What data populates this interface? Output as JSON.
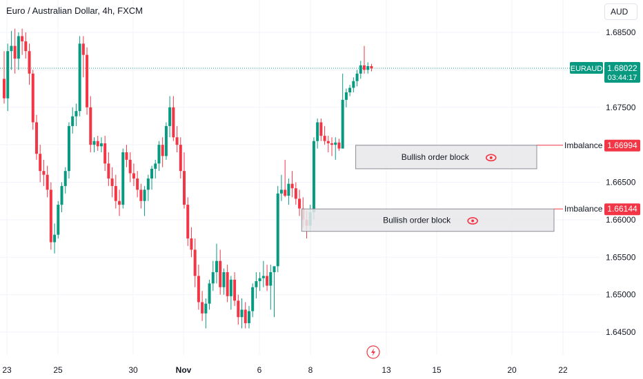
{
  "header": {
    "title": "Euro / Australian Dollar, 4h, FXCM"
  },
  "currency_button": "AUD",
  "price_tag": {
    "symbol": "EURAUD",
    "price": "1.68022",
    "countdown": "03:44:17",
    "color": "#089981"
  },
  "colors": {
    "up": "#089981",
    "down": "#f23645",
    "grid": "#f0f3fa",
    "text": "#131722",
    "box_fill": "#e8e8ea",
    "box_border": "#8a8d95",
    "price_line": "#089981",
    "imbalance_line": "#f23645"
  },
  "chart_data": {
    "type": "candlestick",
    "title": "Euro / Australian Dollar, 4h, FXCM",
    "y_axis": {
      "ticks": [
        "1.68500",
        "1.67500",
        "1.66500",
        "1.66000",
        "1.65500",
        "1.65000",
        "1.64500"
      ],
      "range": [
        1.6405,
        1.6885
      ]
    },
    "x_axis": {
      "labels": [
        "23",
        "25",
        "30",
        "Nov",
        "6",
        "8",
        "13",
        "15",
        "20",
        "22"
      ]
    },
    "last_price": 1.68022,
    "grid": true,
    "candles": [
      [
        1.6788,
        1.6825,
        1.6755,
        1.6762
      ],
      [
        1.6762,
        1.6835,
        1.6745,
        1.6825
      ],
      [
        1.6825,
        1.6852,
        1.68,
        1.6832
      ],
      [
        1.6832,
        1.6855,
        1.6795,
        1.6815
      ],
      [
        1.6815,
        1.685,
        1.68,
        1.6845
      ],
      [
        1.6845,
        1.6855,
        1.682,
        1.6838
      ],
      [
        1.6838,
        1.685,
        1.6815,
        1.6825
      ],
      [
        1.6825,
        1.6835,
        1.678,
        1.6795
      ],
      [
        1.6795,
        1.68,
        1.672,
        1.673
      ],
      [
        1.673,
        1.674,
        1.668,
        1.6688
      ],
      [
        1.6688,
        1.67,
        1.665,
        1.6665
      ],
      [
        1.6665,
        1.668,
        1.6645,
        1.666
      ],
      [
        1.666,
        1.6672,
        1.663,
        1.664
      ],
      [
        1.664,
        1.665,
        1.656,
        1.657
      ],
      [
        1.657,
        1.6595,
        1.6555,
        1.658
      ],
      [
        1.658,
        1.6625,
        1.6575,
        1.662
      ],
      [
        1.662,
        1.665,
        1.661,
        1.6645
      ],
      [
        1.6645,
        1.667,
        1.6635,
        1.6665
      ],
      [
        1.6665,
        1.673,
        1.6655,
        1.6725
      ],
      [
        1.6725,
        1.675,
        1.6715,
        1.6738
      ],
      [
        1.6738,
        1.6755,
        1.6725,
        1.6745
      ],
      [
        1.6745,
        1.6845,
        1.6738,
        1.6835
      ],
      [
        1.6835,
        1.6845,
        1.679,
        1.682
      ],
      [
        1.682,
        1.683,
        1.674,
        1.675
      ],
      [
        1.675,
        1.6765,
        1.669,
        1.67
      ],
      [
        1.67,
        1.671,
        1.669,
        1.6705
      ],
      [
        1.6705,
        1.6712,
        1.6692,
        1.6698
      ],
      [
        1.6698,
        1.671,
        1.669,
        1.6702
      ],
      [
        1.6702,
        1.6712,
        1.6665,
        1.6675
      ],
      [
        1.6675,
        1.669,
        1.6645,
        1.6655
      ],
      [
        1.6655,
        1.667,
        1.663,
        1.6645
      ],
      [
        1.6645,
        1.666,
        1.6615,
        1.6625
      ],
      [
        1.6625,
        1.664,
        1.6605,
        1.662
      ],
      [
        1.662,
        1.6695,
        1.6615,
        1.669
      ],
      [
        1.669,
        1.67,
        1.667,
        1.668
      ],
      [
        1.668,
        1.669,
        1.665,
        1.6662
      ],
      [
        1.6662,
        1.6675,
        1.6645,
        1.6655
      ],
      [
        1.6655,
        1.6665,
        1.663,
        1.664
      ],
      [
        1.664,
        1.6648,
        1.6615,
        1.6625
      ],
      [
        1.6625,
        1.6645,
        1.6605,
        1.664
      ],
      [
        1.664,
        1.666,
        1.6625,
        1.6655
      ],
      [
        1.6655,
        1.6672,
        1.664,
        1.6668
      ],
      [
        1.6668,
        1.668,
        1.6655,
        1.6675
      ],
      [
        1.6675,
        1.6705,
        1.6665,
        1.67
      ],
      [
        1.67,
        1.671,
        1.667,
        1.6685
      ],
      [
        1.6685,
        1.673,
        1.668,
        1.6725
      ],
      [
        1.6725,
        1.6765,
        1.671,
        1.675
      ],
      [
        1.675,
        1.6765,
        1.6705,
        1.671
      ],
      [
        1.671,
        1.6725,
        1.669,
        1.67
      ],
      [
        1.67,
        1.671,
        1.6655,
        1.6665
      ],
      [
        1.6665,
        1.669,
        1.6615,
        1.662
      ],
      [
        1.662,
        1.663,
        1.6565,
        1.6575
      ],
      [
        1.6575,
        1.659,
        1.655,
        1.656
      ],
      [
        1.656,
        1.6575,
        1.651,
        1.6525
      ],
      [
        1.6525,
        1.654,
        1.648,
        1.649
      ],
      [
        1.649,
        1.6505,
        1.6465,
        1.6475
      ],
      [
        1.6475,
        1.6495,
        1.6455,
        1.6488
      ],
      [
        1.6488,
        1.652,
        1.648,
        1.6515
      ],
      [
        1.6515,
        1.6545,
        1.6505,
        1.653
      ],
      [
        1.653,
        1.6568,
        1.6515,
        1.6545
      ],
      [
        1.6545,
        1.656,
        1.65,
        1.651
      ],
      [
        1.651,
        1.6535,
        1.65,
        1.653
      ],
      [
        1.653,
        1.654,
        1.649,
        1.6498
      ],
      [
        1.6498,
        1.6525,
        1.648,
        1.652
      ],
      [
        1.652,
        1.653,
        1.6485,
        1.6492
      ],
      [
        1.6492,
        1.65,
        1.646,
        1.647
      ],
      [
        1.647,
        1.6495,
        1.6455,
        1.648
      ],
      [
        1.648,
        1.649,
        1.6455,
        1.6462
      ],
      [
        1.6462,
        1.6485,
        1.6455,
        1.6478
      ],
      [
        1.6478,
        1.6515,
        1.647,
        1.651
      ],
      [
        1.651,
        1.653,
        1.6495,
        1.6518
      ],
      [
        1.6518,
        1.653,
        1.6505,
        1.6522
      ],
      [
        1.6522,
        1.6545,
        1.651,
        1.6525
      ],
      [
        1.6525,
        1.654,
        1.6505,
        1.6512
      ],
      [
        1.6512,
        1.654,
        1.648,
        1.653
      ],
      [
        1.653,
        1.6535,
        1.647,
        1.6538
      ],
      [
        1.6538,
        1.6645,
        1.653,
        1.6635
      ],
      [
        1.6635,
        1.666,
        1.6625,
        1.664
      ],
      [
        1.664,
        1.668,
        1.663,
        1.6632
      ],
      [
        1.6632,
        1.6655,
        1.662,
        1.6648
      ],
      [
        1.6648,
        1.6665,
        1.663,
        1.6642
      ],
      [
        1.6642,
        1.665,
        1.662,
        1.6628
      ],
      [
        1.6628,
        1.664,
        1.6605,
        1.6615
      ],
      [
        1.6615,
        1.663,
        1.659,
        1.66
      ],
      [
        1.66,
        1.6612,
        1.6575,
        1.6592
      ],
      [
        1.6592,
        1.662,
        1.6585,
        1.661
      ],
      [
        1.661,
        1.671,
        1.66,
        1.6705
      ],
      [
        1.6705,
        1.6735,
        1.6695,
        1.673
      ],
      [
        1.673,
        1.6735,
        1.6705,
        1.6712
      ],
      [
        1.6712,
        1.6725,
        1.67,
        1.6705
      ],
      [
        1.6705,
        1.6712,
        1.669,
        1.6702
      ],
      [
        1.6702,
        1.671,
        1.6685,
        1.67
      ],
      [
        1.67,
        1.671,
        1.668,
        1.6703
      ],
      [
        1.6703,
        1.6708,
        1.6692,
        1.6695
      ],
      [
        1.6695,
        1.6795,
        1.6695,
        1.676
      ],
      [
        1.676,
        1.6775,
        1.675,
        1.677
      ],
      [
        1.677,
        1.678,
        1.6765,
        1.6776
      ],
      [
        1.6776,
        1.679,
        1.677,
        1.6785
      ],
      [
        1.6785,
        1.68,
        1.6778,
        1.6795
      ],
      [
        1.6795,
        1.6812,
        1.6788,
        1.6806
      ],
      [
        1.6806,
        1.6832,
        1.6795,
        1.68
      ],
      [
        1.68,
        1.681,
        1.6795,
        1.6805
      ],
      [
        1.6805,
        1.6808,
        1.6798,
        1.6802
      ]
    ],
    "zones": [
      {
        "label": "Bullish order block",
        "top": 1.66994,
        "bottom": 1.6668,
        "start_index": 98,
        "end_label": "Imbalance",
        "end_value": "1.66994"
      },
      {
        "label": "Bullish order block",
        "top": 1.66144,
        "bottom": 1.65845,
        "start_index": 83,
        "end_label": "Imbalance",
        "end_value": "1.66144"
      }
    ]
  }
}
